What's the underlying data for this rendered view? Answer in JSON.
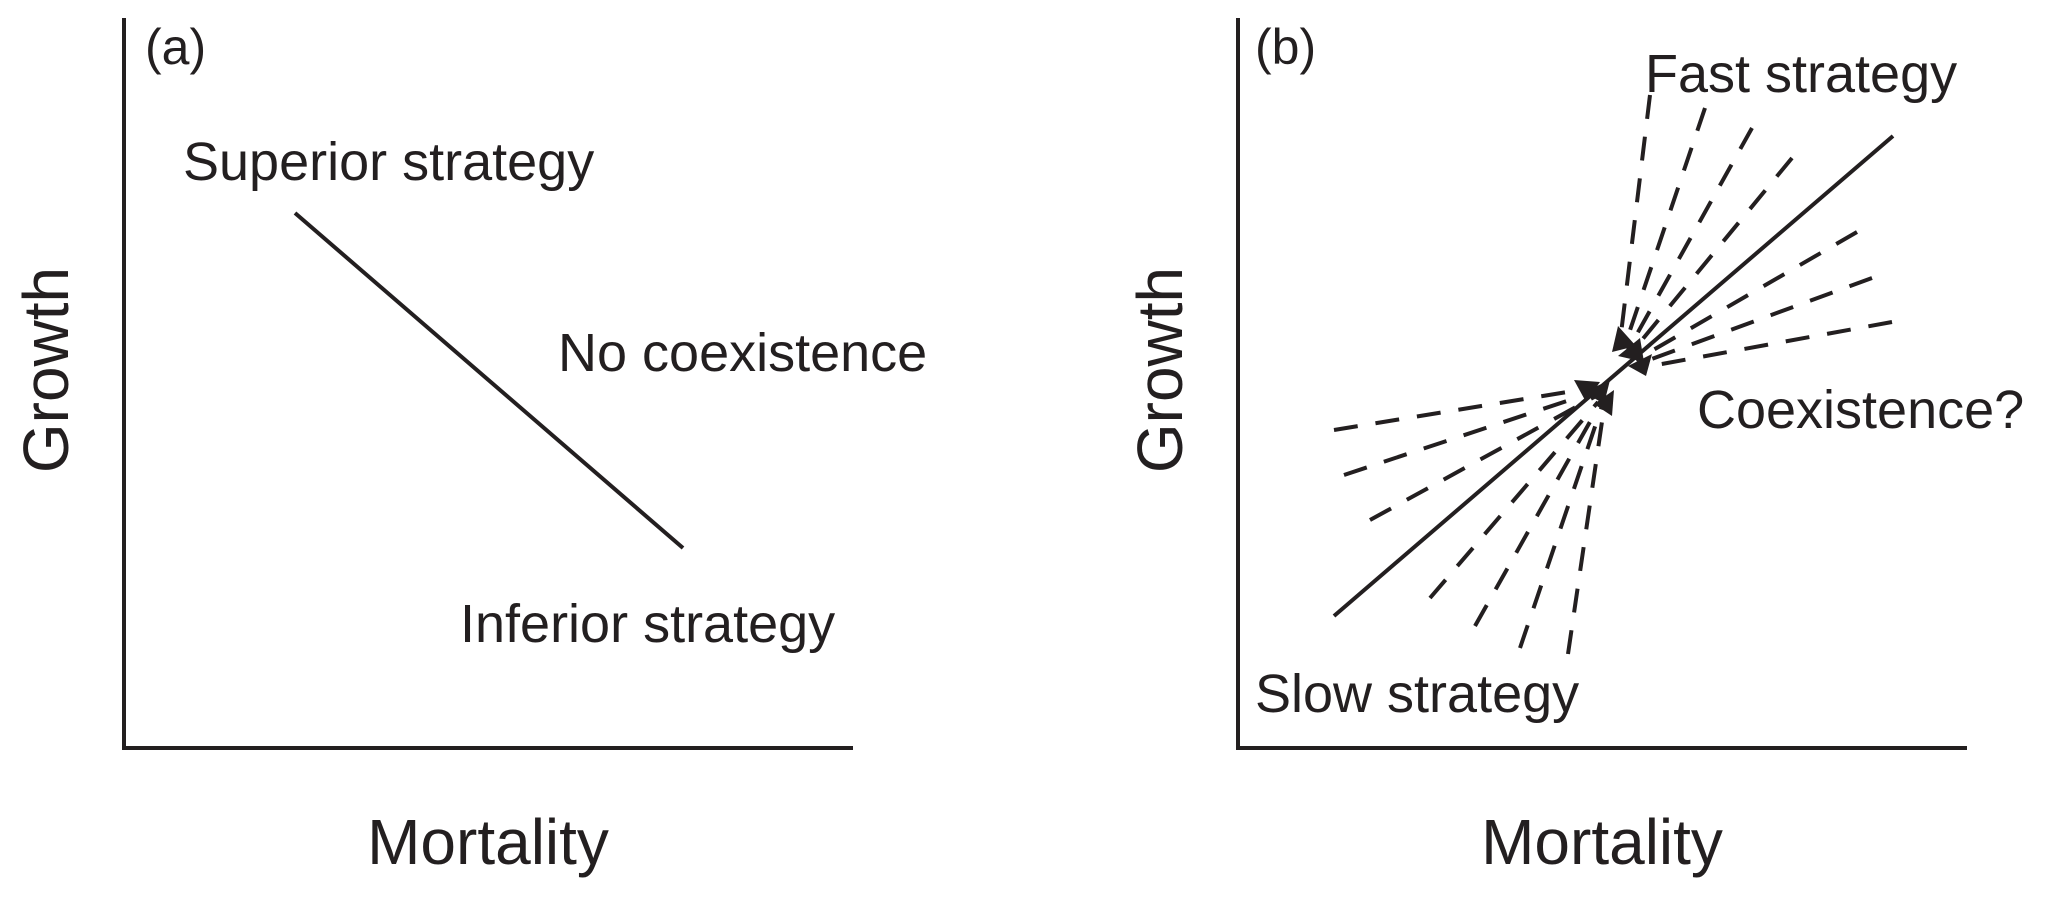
{
  "panel_a": {
    "tag": "(a)",
    "y_axis_label": "Growth",
    "x_axis_label": "Mortality",
    "top_label": "Superior strategy",
    "middle_label": "No coexistence",
    "bottom_label": "Inferior strategy"
  },
  "panel_b": {
    "tag": "(b)",
    "y_axis_label": "Growth",
    "x_axis_label": "Mortality",
    "top_label": "Fast strategy",
    "middle_label": "Coexistence?",
    "bottom_label": "Slow strategy"
  },
  "colors": {
    "ink": "#231f20",
    "background": "#ffffff"
  }
}
